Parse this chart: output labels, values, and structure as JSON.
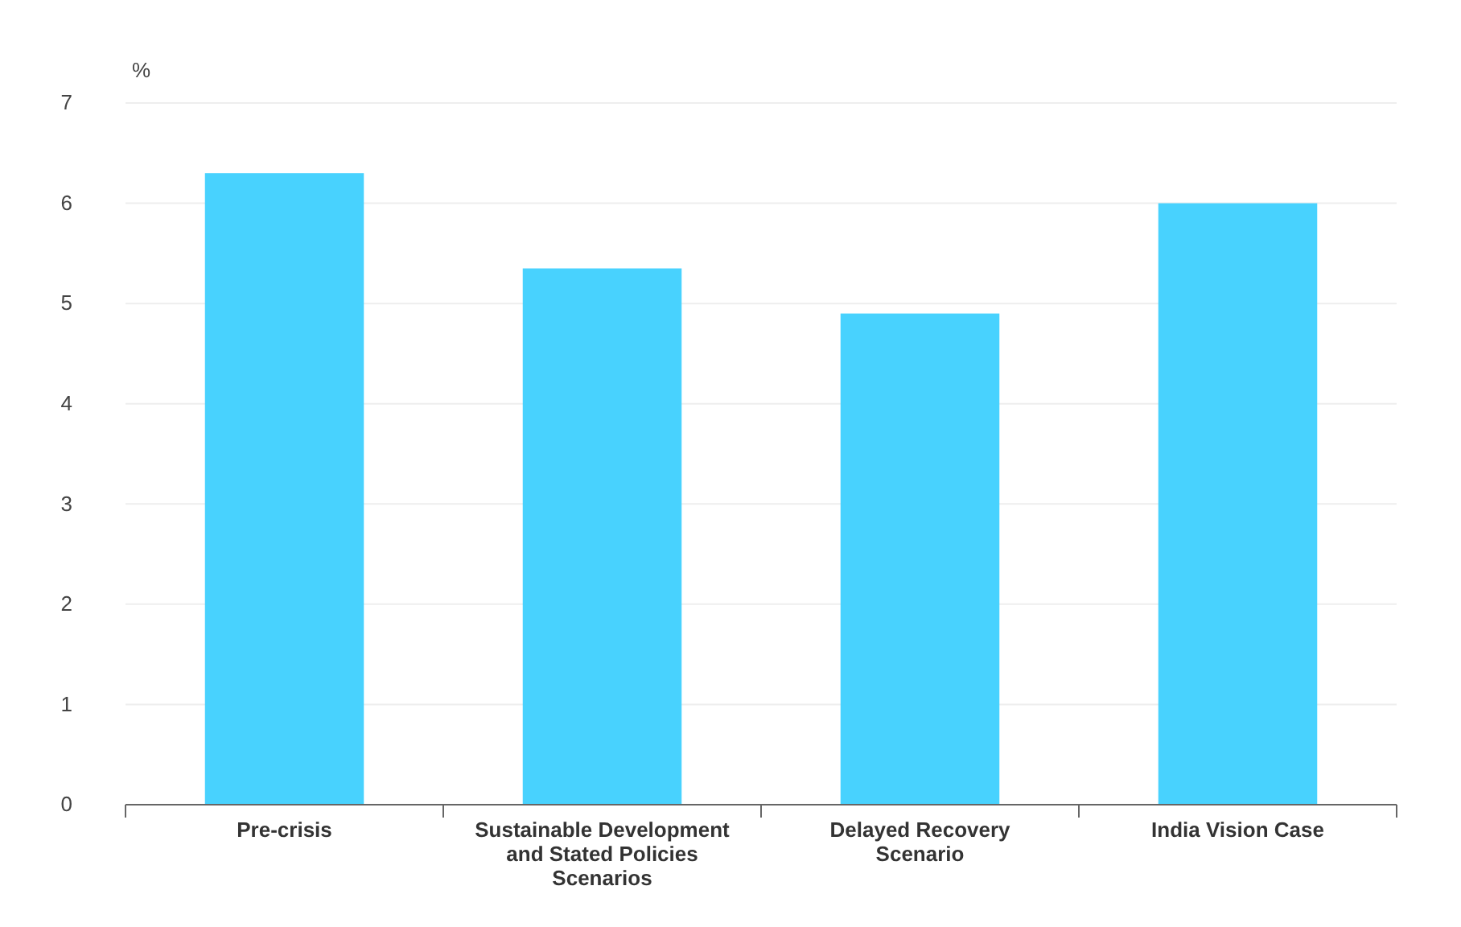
{
  "chart_data": {
    "type": "bar",
    "ylabel": "%",
    "categories": [
      "Pre-crisis",
      "Sustainable Development and Stated Policies Scenarios",
      "Delayed Recovery Scenario",
      "India Vision Case"
    ],
    "values": [
      6.3,
      5.35,
      4.9,
      6.0
    ],
    "color": "#48d2fe",
    "ylim": [
      0,
      7
    ],
    "yticks": [
      0,
      1,
      2,
      3,
      4,
      5,
      6,
      7
    ],
    "grid": "y"
  }
}
